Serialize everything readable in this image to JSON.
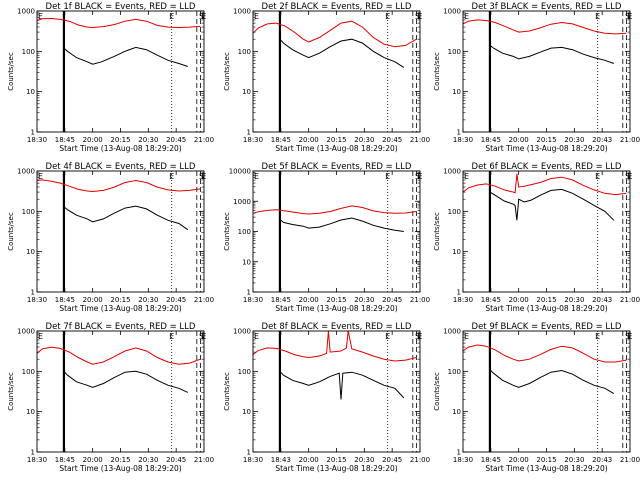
{
  "chart_data": [
    {
      "type": "line",
      "title": "Det 1f BLACK = Events, RED = LLD",
      "xlabel": "Start Time (13-Aug-08 18:29:20)",
      "ylabel": "Counts/sec",
      "yscale": "log",
      "ylim": [
        1,
        1000
      ],
      "xlim": [
        "18:30",
        "21:05"
      ],
      "xticks": [
        "18:30",
        "18:45",
        "20:00",
        "20:15",
        "20:30",
        "20:45",
        "21:00"
      ],
      "yticks": [
        "1",
        "10",
        "100",
        "1000"
      ],
      "markers": {
        "E": [
          "18:30",
          "20:45",
          "21:03"
        ],
        "S": [
          "21:05"
        ]
      },
      "series": [
        {
          "color": "#000000",
          "x": [
            "18:45",
            "18:47",
            "18:52",
            "18:58",
            "20:03",
            "20:08",
            "20:15",
            "20:21",
            "20:27",
            "20:33",
            "20:39",
            "20:45",
            "20:51",
            "20:56"
          ],
          "y": [
            120,
            100,
            70,
            55,
            48,
            55,
            75,
            100,
            125,
            110,
            80,
            60,
            50,
            42
          ]
        },
        {
          "color": "#dd0000",
          "x": [
            "18:30",
            "18:33",
            "18:38",
            "18:43",
            "18:48",
            "18:53",
            "18:58",
            "20:03",
            "20:09",
            "20:15",
            "20:21",
            "20:27",
            "20:33",
            "20:39",
            "20:45",
            "20:51",
            "20:57",
            "21:03"
          ],
          "y": [
            580,
            640,
            650,
            620,
            560,
            450,
            400,
            390,
            410,
            460,
            560,
            620,
            560,
            440,
            400,
            390,
            400,
            420
          ]
        }
      ]
    },
    {
      "type": "line",
      "title": "Det 2f BLACK = Events, RED = LLD",
      "xlabel": "Start Time (13-Aug-08 18:29:20)",
      "ylabel": "Counts/sec",
      "yscale": "log",
      "ylim": [
        1,
        1000
      ],
      "xlim": [
        "18:30",
        "21:05"
      ],
      "xticks": [
        "18:30",
        "18:45",
        "20:00",
        "20:15",
        "20:30",
        "20:45",
        "21:00"
      ],
      "yticks": [
        "1",
        "10",
        "100",
        "1000"
      ],
      "markers": {
        "E": [
          "18:30",
          "20:45",
          "21:03"
        ],
        "S": [
          "21:05"
        ]
      },
      "series": [
        {
          "color": "#000000",
          "x": [
            "18:45",
            "18:47",
            "18:52",
            "18:58",
            "20:03",
            "20:09",
            "20:15",
            "20:21",
            "20:27",
            "20:33",
            "20:39",
            "20:45",
            "20:51",
            "20:56"
          ],
          "y": [
            200,
            160,
            110,
            80,
            70,
            90,
            130,
            180,
            200,
            160,
            100,
            70,
            55,
            40
          ]
        },
        {
          "color": "#dd0000",
          "x": [
            "18:30",
            "18:33",
            "18:38",
            "18:43",
            "18:48",
            "18:53",
            "18:58",
            "20:03",
            "20:09",
            "20:15",
            "20:21",
            "20:27",
            "20:33",
            "20:39",
            "20:45",
            "20:51",
            "20:57",
            "21:03"
          ],
          "y": [
            280,
            380,
            480,
            500,
            420,
            300,
            200,
            170,
            220,
            330,
            500,
            560,
            400,
            220,
            150,
            130,
            140,
            200
          ]
        }
      ]
    },
    {
      "type": "line",
      "title": "Det 3f BLACK = Events, RED = LLD",
      "xlabel": "Start Time (13-Aug-08 18:29:20)",
      "ylabel": "Counts/sec",
      "yscale": "log",
      "ylim": [
        1,
        1000
      ],
      "xlim": [
        "18:30",
        "21:05"
      ],
      "xticks": [
        "18:30",
        "18:45",
        "20:00",
        "20:15",
        "20:30",
        "20:43",
        "21:00"
      ],
      "yticks": [
        "1",
        "10",
        "100",
        "1000"
      ],
      "markers": {
        "E": [
          "18:30",
          "20:45",
          "21:03"
        ],
        "S": [
          "21:05"
        ]
      },
      "series": [
        {
          "color": "#000000",
          "x": [
            "18:45",
            "18:47",
            "18:52",
            "18:58",
            "20:03",
            "20:09",
            "20:15",
            "20:21",
            "20:27",
            "20:33",
            "20:39",
            "20:45",
            "20:51",
            "20:56"
          ],
          "y": [
            140,
            120,
            90,
            75,
            65,
            75,
            95,
            120,
            125,
            110,
            85,
            70,
            60,
            50
          ]
        },
        {
          "color": "#dd0000",
          "x": [
            "18:30",
            "18:33",
            "18:38",
            "18:43",
            "18:48",
            "18:53",
            "18:58",
            "20:03",
            "20:09",
            "20:15",
            "20:21",
            "20:27",
            "20:33",
            "20:39",
            "20:45",
            "20:51",
            "20:57",
            "21:03"
          ],
          "y": [
            480,
            560,
            600,
            580,
            520,
            420,
            340,
            300,
            320,
            380,
            470,
            520,
            480,
            390,
            320,
            280,
            270,
            280
          ]
        }
      ]
    },
    {
      "type": "line",
      "title": "Det 4f BLACK = Events, RED = LLD",
      "xlabel": "Start Time (13-Aug-08 18:29:20)",
      "ylabel": "Counts/sec",
      "yscale": "log",
      "ylim": [
        1,
        1000
      ],
      "xlim": [
        "18:30",
        "21:05"
      ],
      "xticks": [
        "18:30",
        "18:45",
        "20:00",
        "20:15",
        "20:30",
        "20:45",
        "21:00"
      ],
      "yticks": [
        "1",
        "10",
        "100",
        "1000"
      ],
      "markers": {
        "E": [
          "18:30",
          "20:45",
          "21:03"
        ],
        "S": [
          "21:05"
        ]
      },
      "series": [
        {
          "color": "#000000",
          "x": [
            "18:45",
            "18:47",
            "18:52",
            "18:58",
            "20:03",
            "20:09",
            "20:15",
            "20:21",
            "20:27",
            "20:33",
            "20:39",
            "20:45",
            "20:51",
            "20:56"
          ],
          "y": [
            130,
            110,
            80,
            65,
            55,
            65,
            90,
            120,
            135,
            115,
            80,
            60,
            50,
            35
          ]
        },
        {
          "color": "#dd0000",
          "x": [
            "18:30",
            "18:33",
            "18:38",
            "18:43",
            "18:48",
            "18:53",
            "18:58",
            "20:03",
            "20:09",
            "20:15",
            "20:21",
            "20:27",
            "20:33",
            "20:39",
            "20:45",
            "20:51",
            "20:57",
            "21:03"
          ],
          "y": [
            580,
            600,
            560,
            500,
            420,
            350,
            320,
            310,
            330,
            400,
            520,
            580,
            520,
            400,
            340,
            320,
            330,
            360
          ]
        }
      ]
    },
    {
      "type": "line",
      "title": "Det 5f BLACK = Events, RED = LLD",
      "xlabel": "Start Time (13-Aug-08 18:29:20)",
      "ylabel": "Counts/sec",
      "yscale": "log",
      "ylim": [
        1,
        10000
      ],
      "xlim": [
        "18:30",
        "21:05"
      ],
      "xticks": [
        "18:30",
        "18:45",
        "20:00",
        "20:15",
        "20:30",
        "20:45",
        "21:00"
      ],
      "yticks": [
        "1",
        "10",
        "100",
        "1000",
        "10000"
      ],
      "markers": {
        "E": [
          "18:30",
          "20:45",
          "21:03"
        ],
        "S": [
          "21:05"
        ]
      },
      "series": [
        {
          "color": "#000000",
          "x": [
            "18:45",
            "18:47",
            "18:52",
            "18:58",
            "20:03",
            "20:09",
            "20:15",
            "20:21",
            "20:27",
            "20:33",
            "20:39",
            "20:45",
            "20:51",
            "20:56"
          ],
          "y": [
            250,
            200,
            170,
            150,
            130,
            140,
            180,
            240,
            280,
            220,
            160,
            130,
            110,
            100
          ]
        },
        {
          "color": "#dd0000",
          "x": [
            "18:30",
            "18:33",
            "18:38",
            "18:43",
            "18:48",
            "18:53",
            "18:58",
            "20:03",
            "20:09",
            "20:15",
            "20:21",
            "20:27",
            "20:33",
            "20:39",
            "20:45",
            "20:51",
            "20:57",
            "21:03"
          ],
          "y": [
            400,
            450,
            500,
            520,
            480,
            430,
            390,
            380,
            400,
            460,
            580,
            700,
            620,
            480,
            420,
            400,
            410,
            460
          ]
        }
      ]
    },
    {
      "type": "line",
      "title": "Det 6f BLACK = Events, RED = LLD",
      "xlabel": "Start Time (13-Aug-08 18:29:20)",
      "ylabel": "Counts/sec",
      "yscale": "log",
      "ylim": [
        1,
        1000
      ],
      "xlim": [
        "18:30",
        "21:05"
      ],
      "xticks": [
        "18:30",
        "18:45",
        "20:00",
        "20:15",
        "20:30",
        "20:43",
        "21:00"
      ],
      "yticks": [
        "1",
        "10",
        "100",
        "1000"
      ],
      "markers": {
        "E": [
          "18:30",
          "20:45",
          "21:03"
        ],
        "S": [
          "21:05"
        ]
      },
      "series": [
        {
          "color": "#000000",
          "x": [
            "18:45",
            "18:48",
            "18:53",
            "18:58",
            "20:01",
            "20:02",
            "20:03",
            "20:06",
            "20:10",
            "20:15",
            "20:21",
            "20:27",
            "20:33",
            "20:39",
            "20:45",
            "20:51",
            "20:56"
          ],
          "y": [
            300,
            250,
            180,
            150,
            140,
            60,
            200,
            170,
            190,
            250,
            330,
            350,
            280,
            200,
            140,
            100,
            60
          ]
        },
        {
          "color": "#dd0000",
          "x": [
            "18:30",
            "18:33",
            "18:38",
            "18:43",
            "18:48",
            "18:53",
            "18:58",
            "20:01",
            "20:02",
            "20:03",
            "20:06",
            "20:10",
            "20:15",
            "20:21",
            "20:27",
            "20:33",
            "20:39",
            "20:45",
            "20:51",
            "20:57",
            "21:03"
          ],
          "y": [
            300,
            380,
            450,
            480,
            420,
            340,
            300,
            290,
            850,
            400,
            420,
            460,
            520,
            650,
            700,
            600,
            440,
            340,
            280,
            260,
            280
          ]
        }
      ]
    },
    {
      "type": "line",
      "title": "Det 7f BLACK = Events, RED = LLD",
      "xlabel": "Start Time (13-Aug-08 18:29:20)",
      "ylabel": "Counts/sec",
      "yscale": "log",
      "ylim": [
        1,
        1000
      ],
      "xlim": [
        "18:30",
        "21:05"
      ],
      "xticks": [
        "18:30",
        "18:45",
        "20:00",
        "20:15",
        "20:30",
        "20:45",
        "21:00"
      ],
      "yticks": [
        "1",
        "10",
        "100",
        "1000"
      ],
      "markers": {
        "E": [
          "18:30",
          "20:45",
          "21:03"
        ],
        "S": [
          "21:05"
        ]
      },
      "series": [
        {
          "color": "#000000",
          "x": [
            "18:45",
            "18:47",
            "18:52",
            "18:58",
            "20:03",
            "20:09",
            "20:15",
            "20:21",
            "20:27",
            "20:33",
            "20:39",
            "20:45",
            "20:51",
            "20:56"
          ],
          "y": [
            100,
            80,
            55,
            45,
            40,
            50,
            70,
            95,
            100,
            85,
            60,
            45,
            38,
            30
          ]
        },
        {
          "color": "#dd0000",
          "x": [
            "18:30",
            "18:33",
            "18:38",
            "18:43",
            "18:48",
            "18:53",
            "18:58",
            "20:03",
            "20:09",
            "20:15",
            "20:21",
            "20:27",
            "20:33",
            "20:39",
            "20:45",
            "20:51",
            "20:57",
            "21:03"
          ],
          "y": [
            280,
            360,
            400,
            370,
            300,
            220,
            170,
            150,
            170,
            230,
            320,
            380,
            320,
            220,
            170,
            150,
            160,
            200
          ]
        }
      ]
    },
    {
      "type": "line",
      "title": "Det 8f BLACK = Events, RED = LLD",
      "xlabel": "Start Time (13-Aug-08 18:29:20)",
      "ylabel": "Counts/sec",
      "yscale": "log",
      "ylim": [
        1,
        1000
      ],
      "xlim": [
        "18:30",
        "21:05"
      ],
      "xticks": [
        "18:30",
        "18:43",
        "20:00",
        "20:15",
        "20:30",
        "20:45",
        "21:00"
      ],
      "yticks": [
        "1",
        "10",
        "100",
        "1000"
      ],
      "markers": {
        "E": [
          "18:30",
          "20:45",
          "21:03"
        ],
        "S": [
          "21:05"
        ]
      },
      "series": [
        {
          "color": "#000000",
          "x": [
            "18:45",
            "18:47",
            "18:52",
            "18:58",
            "20:03",
            "20:09",
            "20:15",
            "20:20",
            "20:21",
            "20:22",
            "20:27",
            "20:33",
            "20:39",
            "20:45",
            "20:51",
            "20:56"
          ],
          "y": [
            100,
            80,
            60,
            50,
            45,
            55,
            75,
            90,
            20,
            90,
            95,
            80,
            60,
            45,
            38,
            22
          ]
        },
        {
          "color": "#dd0000",
          "x": [
            "18:30",
            "18:33",
            "18:38",
            "18:43",
            "18:48",
            "18:53",
            "18:58",
            "20:03",
            "20:09",
            "20:13",
            "20:14",
            "20:15",
            "20:21",
            "20:24",
            "20:25",
            "20:27",
            "20:33",
            "20:39",
            "20:45",
            "20:51",
            "20:57",
            "21:03"
          ],
          "y": [
            260,
            330,
            380,
            370,
            320,
            260,
            230,
            220,
            240,
            280,
            1000,
            300,
            320,
            380,
            1000,
            360,
            300,
            240,
            200,
            180,
            190,
            220
          ]
        }
      ]
    },
    {
      "type": "line",
      "title": "Det 9f BLACK = Events, RED = LLD",
      "xlabel": "Start Time (13-Aug-08 18:29:20)",
      "ylabel": "Counts/sec",
      "yscale": "log",
      "ylim": [
        1,
        1000
      ],
      "xlim": [
        "18:30",
        "21:05"
      ],
      "xticks": [
        "18:30",
        "18:45",
        "20:00",
        "20:15",
        "20:30",
        "20:43",
        "21:00"
      ],
      "yticks": [
        "1",
        "10",
        "100",
        "1000"
      ],
      "markers": {
        "E": [
          "18:30",
          "20:45",
          "21:03"
        ],
        "S": [
          "21:05"
        ]
      },
      "series": [
        {
          "color": "#000000",
          "x": [
            "18:45",
            "18:47",
            "18:52",
            "18:58",
            "20:03",
            "20:09",
            "20:15",
            "20:21",
            "20:27",
            "20:33",
            "20:39",
            "20:45",
            "20:51",
            "20:56"
          ],
          "y": [
            110,
            90,
            60,
            45,
            40,
            50,
            70,
            95,
            105,
            85,
            60,
            45,
            38,
            28
          ]
        },
        {
          "color": "#dd0000",
          "x": [
            "18:30",
            "18:33",
            "18:38",
            "18:43",
            "18:48",
            "18:53",
            "18:58",
            "20:03",
            "20:09",
            "20:15",
            "20:21",
            "20:27",
            "20:33",
            "20:39",
            "20:45",
            "20:51",
            "20:57",
            "21:03"
          ],
          "y": [
            320,
            400,
            450,
            420,
            340,
            250,
            200,
            180,
            200,
            260,
            350,
            420,
            380,
            280,
            200,
            170,
            170,
            190
          ]
        }
      ]
    }
  ]
}
